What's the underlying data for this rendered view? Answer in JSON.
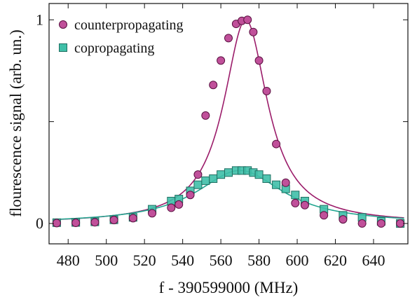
{
  "chart_data": {
    "type": "scatter",
    "xlabel": "f - 390599000 (MHz)",
    "ylabel": "flourescence signal (arb. un.)",
    "xlim": [
      470,
      658
    ],
    "ylim": [
      -0.1,
      1.08
    ],
    "x_ticks": [
      480,
      500,
      520,
      540,
      560,
      580,
      600,
      620,
      640
    ],
    "y_ticks": [
      0,
      0.5,
      1
    ],
    "y_tick_labels": [
      "0",
      "",
      "1"
    ],
    "grid": false,
    "legend_position": "top-left",
    "series": [
      {
        "name": "counterpropagating",
        "marker": "circle",
        "color": "#c0509a",
        "edge_color": "#5a1040",
        "fit_color": "#9b1c6a",
        "x": [
          474,
          484,
          494,
          504,
          514,
          524,
          534,
          538,
          544,
          548,
          552,
          556,
          560,
          564,
          568,
          571,
          574,
          577,
          580,
          584,
          589,
          594,
          599,
          604,
          614,
          624,
          634,
          644,
          654
        ],
        "y": [
          0.002,
          0.003,
          0.006,
          0.017,
          0.026,
          0.05,
          0.077,
          0.093,
          0.14,
          0.24,
          0.53,
          0.68,
          0.8,
          0.91,
          0.98,
          0.995,
          1.0,
          0.94,
          0.8,
          0.65,
          0.39,
          0.2,
          0.1,
          0.09,
          0.04,
          0.02,
          0.0,
          0.0,
          0.0
        ],
        "fit": {
          "center": 573,
          "amplitude": 1.0,
          "width": 14,
          "baseline": 0.0
        }
      },
      {
        "name": "copropagating",
        "marker": "square",
        "color": "#3fbfa8",
        "edge_color": "#1f6f62",
        "fit_color": "#23a690",
        "x": [
          474,
          484,
          494,
          504,
          514,
          524,
          534,
          538,
          544,
          548,
          552,
          556,
          560,
          564,
          568,
          571,
          574,
          577,
          580,
          584,
          589,
          594,
          599,
          604,
          614,
          624,
          634,
          644,
          654
        ],
        "y": [
          0.004,
          0.005,
          0.008,
          0.018,
          0.03,
          0.07,
          0.11,
          0.12,
          0.16,
          0.19,
          0.21,
          0.22,
          0.24,
          0.25,
          0.26,
          0.26,
          0.26,
          0.25,
          0.24,
          0.22,
          0.19,
          0.17,
          0.14,
          0.11,
          0.07,
          0.04,
          0.03,
          0.01,
          0.0
        ],
        "fit": {
          "center": 570,
          "amplitude": 0.26,
          "width": 28,
          "baseline": 0.0
        }
      }
    ]
  }
}
